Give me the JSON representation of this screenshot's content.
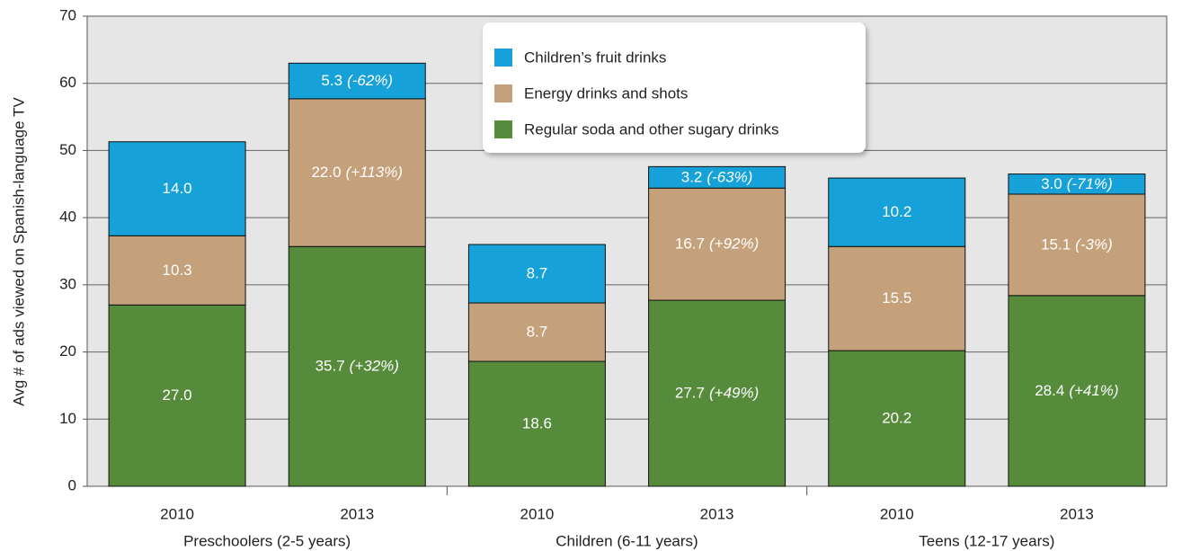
{
  "chart_data": {
    "type": "stacked_bar",
    "y_axis_label": "Avg # of ads viewed on Spanish-language TV",
    "categories": [
      "2010",
      "2013",
      "2010",
      "2013",
      "2010",
      "2013"
    ],
    "groups": [
      "Preschoolers (2-5 years)",
      "Children (6-11 years)",
      "Teens (12-17 years)"
    ],
    "series": [
      {
        "name": "Regular soda and other sugary drinks",
        "color": "#558b3b",
        "values": [
          27.0,
          35.7,
          18.6,
          27.7,
          20.2,
          28.4
        ],
        "value_labels": [
          "27.0",
          "35.7",
          "18.6",
          "27.7",
          "20.2",
          "28.4"
        ],
        "change_labels": [
          null,
          "(+32%)",
          null,
          "(+49%)",
          null,
          "(+41%)"
        ]
      },
      {
        "name": "Energy drinks and shots",
        "color": "#c4a07b",
        "values": [
          10.3,
          22.0,
          8.7,
          16.7,
          15.5,
          15.1
        ],
        "value_labels": [
          "10.3",
          "22.0",
          "8.7",
          "16.7",
          "15.5",
          "15.1"
        ],
        "change_labels": [
          null,
          "(+113%)",
          null,
          "(+92%)",
          null,
          "(-3%)"
        ]
      },
      {
        "name": "Children’s fruit drinks",
        "color": "#16a1d8",
        "values": [
          14.0,
          5.3,
          8.7,
          3.2,
          10.2,
          3.0
        ],
        "value_labels": [
          "14.0",
          "5.3",
          "8.7",
          "3.2",
          "10.2",
          "3.0"
        ],
        "change_labels": [
          null,
          "(-62%)",
          null,
          "(-63%)",
          null,
          "(-71%)"
        ]
      }
    ],
    "ylim": [
      0,
      70
    ],
    "yticks": [
      0,
      10,
      20,
      30,
      40,
      50,
      60,
      70
    ],
    "grid": true,
    "legend": "top"
  }
}
